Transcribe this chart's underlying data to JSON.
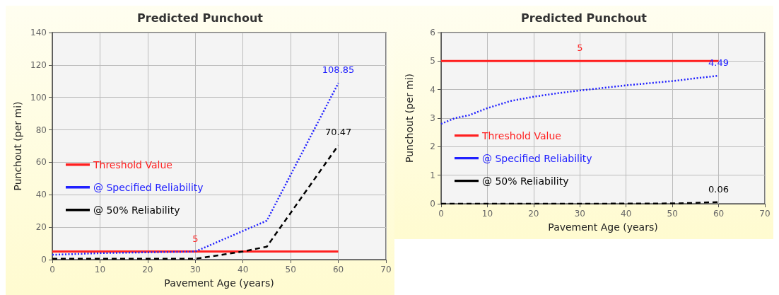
{
  "chart_data": [
    {
      "type": "line",
      "title": "Predicted Punchout",
      "xlabel": "Pavement Age (years)",
      "ylabel": "Punchout (per mi)",
      "xlim": [
        0,
        70
      ],
      "xticks": [
        0,
        10,
        20,
        30,
        40,
        50,
        60,
        70
      ],
      "ylim": [
        0,
        140
      ],
      "yticks": [
        0,
        20,
        40,
        60,
        80,
        100,
        120,
        140
      ],
      "grid": true,
      "legend": "left",
      "marker": "none",
      "series": [
        {
          "name": "Threshold Value",
          "color": "#ff2020",
          "line_style": "solid",
          "x": [
            0,
            30,
            60
          ],
          "values": [
            5,
            5,
            5
          ],
          "value_labels": [
            null,
            "5",
            null
          ]
        },
        {
          "name": "@ Specified Reliability",
          "color": "#2020ff",
          "line_style": "dotted",
          "x": [
            0,
            10,
            20,
            30,
            45,
            60
          ],
          "values": [
            3,
            4,
            4.5,
            5,
            24,
            108.85
          ],
          "value_labels": [
            null,
            null,
            null,
            null,
            null,
            "108.85"
          ]
        },
        {
          "name": "@ 50% Reliability",
          "color": "#000000",
          "line_style": "dashed",
          "x": [
            0,
            30,
            40,
            45,
            60
          ],
          "values": [
            0.5,
            0.5,
            5,
            8,
            70.47
          ],
          "value_labels": [
            null,
            null,
            null,
            null,
            "70.47"
          ]
        }
      ]
    },
    {
      "type": "line",
      "title": "Predicted Punchout",
      "xlabel": "Pavement Age (years)",
      "ylabel": "Punchout (per mi)",
      "xlim": [
        0,
        70
      ],
      "xticks": [
        0,
        10,
        20,
        30,
        40,
        50,
        60,
        70
      ],
      "ylim": [
        0,
        6
      ],
      "yticks": [
        0,
        1,
        2,
        3,
        4,
        5,
        6
      ],
      "grid": true,
      "legend": "left",
      "marker": "none",
      "series": [
        {
          "name": "Threshold Value",
          "color": "#ff2020",
          "line_style": "solid",
          "x": [
            0,
            30,
            60
          ],
          "values": [
            5,
            5,
            5
          ],
          "value_labels": [
            null,
            "5",
            null
          ]
        },
        {
          "name": "@ Specified Reliability",
          "color": "#2020ff",
          "line_style": "dotted",
          "x": [
            0,
            3,
            6,
            10,
            15,
            20,
            25,
            30,
            40,
            50,
            60
          ],
          "values": [
            2.8,
            3.0,
            3.1,
            3.35,
            3.6,
            3.75,
            3.87,
            3.97,
            4.15,
            4.3,
            4.49
          ],
          "value_labels": [
            null,
            null,
            null,
            null,
            null,
            null,
            null,
            null,
            null,
            null,
            "4.49"
          ]
        },
        {
          "name": "@ 50% Reliability",
          "color": "#000000",
          "line_style": "dashed",
          "x": [
            0,
            30,
            50,
            55,
            60
          ],
          "values": [
            0,
            0,
            0.01,
            0.03,
            0.06
          ],
          "value_labels": [
            null,
            null,
            null,
            null,
            "0.06"
          ]
        }
      ]
    }
  ]
}
